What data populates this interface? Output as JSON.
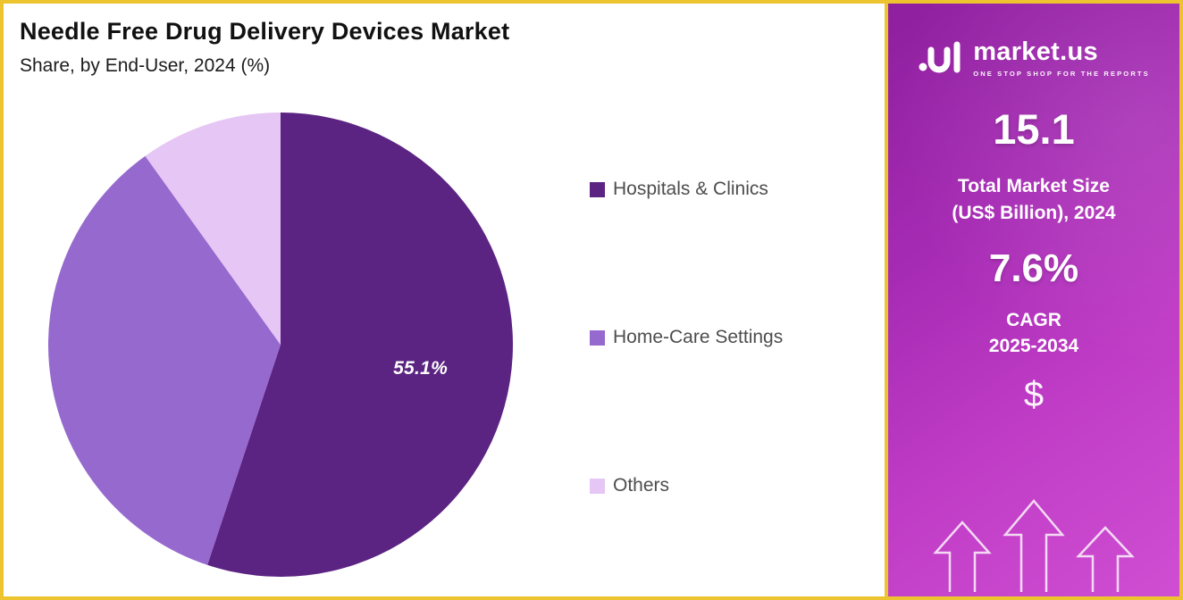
{
  "header": {
    "title": "Needle Free Drug Delivery Devices Market",
    "subtitle": "Share, by End-User, 2024 (%)"
  },
  "chart_data": {
    "type": "pie",
    "title": "Needle Free Drug Delivery Devices Market",
    "subtitle": "Share, by End-User, 2024 (%)",
    "categories": [
      "Hospitals & Clinics",
      "Home-Care Settings",
      "Others"
    ],
    "values": [
      55.1,
      35.0,
      9.9
    ],
    "colors": [
      "#5b2382",
      "#9669ce",
      "#e5c6f4"
    ],
    "start_angle": "top",
    "direction": "clockwise",
    "legend_position": "right",
    "data_labels": [
      {
        "category": "Hospitals & Clinics",
        "text": "55.1%"
      }
    ]
  },
  "pie_label": "55.1%",
  "legend": {
    "items": [
      {
        "label": "Hospitals & Clinics",
        "color": "#5b2382"
      },
      {
        "label": "Home-Care Settings",
        "color": "#9669ce"
      },
      {
        "label": "Others",
        "color": "#e5c6f4"
      }
    ]
  },
  "sidebar": {
    "brand_name": "market.us",
    "brand_tagline": "ONE STOP SHOP FOR THE REPORTS",
    "market_size_value": "15.1",
    "market_size_label_line1": "Total Market Size",
    "market_size_label_line2": "(US$ Billion), 2024",
    "cagr_value": "7.6%",
    "cagr_label": "CAGR",
    "cagr_period": "2025-2034",
    "currency_symbol": "$"
  }
}
